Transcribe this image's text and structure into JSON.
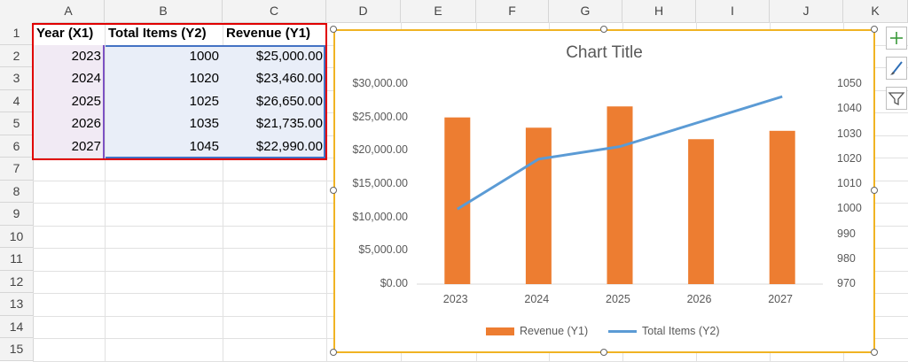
{
  "columns": [
    "A",
    "B",
    "C",
    "D",
    "E",
    "F",
    "G",
    "H",
    "I",
    "J",
    "K"
  ],
  "rows": [
    "1",
    "2",
    "3",
    "4",
    "5",
    "6",
    "7",
    "8",
    "9",
    "10",
    "11",
    "12",
    "13",
    "14",
    "15"
  ],
  "table": {
    "headers": [
      "Year (X1)",
      "Total Items (Y2)",
      "Revenue (Y1)"
    ],
    "rows": [
      [
        "2023",
        "1000",
        "$25,000.00"
      ],
      [
        "2024",
        "1020",
        "$23,460.00"
      ],
      [
        "2025",
        "1025",
        "$26,650.00"
      ],
      [
        "2026",
        "1035",
        "$21,735.00"
      ],
      [
        "2027",
        "1045",
        "$22,990.00"
      ]
    ]
  },
  "chart_data": {
    "type": "bar",
    "title": "Chart Title",
    "categories": [
      "2023",
      "2024",
      "2025",
      "2026",
      "2027"
    ],
    "series": [
      {
        "name": "Revenue (Y1)",
        "type": "bar",
        "axis": "left",
        "values": [
          25000,
          23460,
          26650,
          21735,
          22990
        ],
        "color": "#ed7d31"
      },
      {
        "name": "Total Items (Y2)",
        "type": "line",
        "axis": "right",
        "values": [
          1000,
          1020,
          1025,
          1035,
          1045
        ],
        "color": "#5b9bd5"
      }
    ],
    "left_axis": {
      "ticks": [
        "$0.00",
        "$5,000.00",
        "$10,000.00",
        "$15,000.00",
        "$20,000.00",
        "$25,000.00",
        "$30,000.00"
      ],
      "ylim": [
        0,
        30000
      ]
    },
    "right_axis": {
      "ticks": [
        "970",
        "980",
        "990",
        "1000",
        "1010",
        "1020",
        "1030",
        "1040",
        "1050"
      ],
      "ylim": [
        970,
        1050
      ]
    },
    "legend": "bottom",
    "grid": false
  },
  "side_buttons": [
    "chart-elements-icon",
    "chart-styles-icon",
    "chart-filters-icon"
  ]
}
